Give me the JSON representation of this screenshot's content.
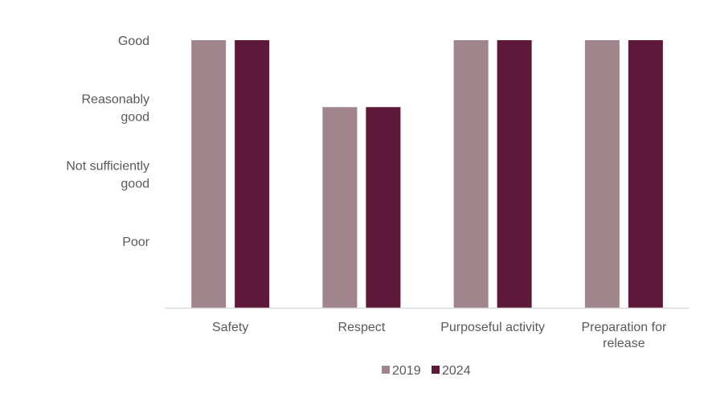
{
  "chart_data": {
    "type": "bar",
    "title": "",
    "xlabel": "",
    "ylabel": "",
    "categories": [
      "Safety",
      "Respect",
      "Purposeful activity",
      "Preparation for release"
    ],
    "category_lines": [
      [
        "Safety"
      ],
      [
        "Respect"
      ],
      [
        "Purposeful activity"
      ],
      [
        "Preparation for",
        "release"
      ]
    ],
    "y_scale": [
      {
        "value": 1,
        "label": "Poor",
        "lines": [
          "Poor"
        ]
      },
      {
        "value": 2,
        "label": "Not sufficiently good",
        "lines": [
          "Not sufficiently",
          "good"
        ]
      },
      {
        "value": 3,
        "label": "Reasonably good",
        "lines": [
          "Reasonably",
          "good"
        ]
      },
      {
        "value": 4,
        "label": "Good",
        "lines": [
          "Good"
        ]
      }
    ],
    "ylim": [
      0,
      4
    ],
    "grid": false,
    "legend_position": "bottom",
    "series": [
      {
        "name": "2019",
        "color": "#A0858D",
        "values": [
          4,
          3,
          4,
          4
        ]
      },
      {
        "name": "2024",
        "color": "#5E1839",
        "values": [
          4,
          3,
          4,
          4
        ]
      }
    ]
  }
}
